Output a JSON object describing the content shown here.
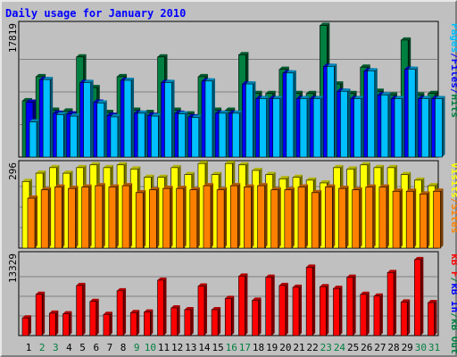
{
  "chart_data": {
    "type": "bar",
    "title": "Daily usage for January 2010",
    "categories": [
      "1",
      "2",
      "3",
      "4",
      "5",
      "6",
      "7",
      "8",
      "9",
      "10",
      "11",
      "12",
      "13",
      "14",
      "15",
      "16",
      "17",
      "18",
      "19",
      "20",
      "21",
      "22",
      "23",
      "24",
      "25",
      "26",
      "27",
      "28",
      "29",
      "30",
      "31"
    ],
    "weekend_days": [
      "2",
      "3",
      "9",
      "10",
      "16",
      "17",
      "23",
      "24",
      "30",
      "31"
    ],
    "panels": [
      {
        "id": "pages_files_hits",
        "max_label": "17819",
        "ylim": [
          0,
          17819
        ],
        "series": [
          {
            "name": "Hits",
            "color": "#008040",
            "values": [
              7700,
              11000,
              6400,
              6300,
              13700,
              9500,
              6100,
              11000,
              6400,
              6100,
              13700,
              6400,
              5900,
              11000,
              6400,
              6400,
              14000,
              8700,
              8700,
              12000,
              8700,
              8700,
              18000,
              10000,
              8700,
              12300,
              9000,
              8500,
              16000,
              8500,
              8700
            ]
          },
          {
            "name": "Files",
            "color": "#0000ff",
            "values": [
              7500,
              10600,
              6000,
              5900,
              10200,
              7500,
              5700,
              10500,
              6000,
              5700,
              10200,
              6000,
              5500,
              10400,
              6000,
              6000,
              10000,
              8000,
              8000,
              11500,
              8000,
              8000,
              12400,
              9000,
              8000,
              11800,
              8500,
              8000,
              12000,
              8000,
              8000
            ]
          },
          {
            "name": "Pages",
            "color": "#00c0ff",
            "values": [
              4800,
              10600,
              5800,
              5600,
              10200,
              7400,
              5500,
              10500,
              6000,
              5600,
              10200,
              5900,
              5400,
              10400,
              6000,
              6000,
              10000,
              8000,
              8000,
              11500,
              8000,
              8000,
              12400,
              9000,
              8000,
              11800,
              8500,
              8000,
              12000,
              8000,
              8000
            ]
          }
        ],
        "axis_label_parts": [
          {
            "text": "Pages",
            "color": "#00c0ff"
          },
          {
            "text": "/",
            "color": "#0000ff"
          },
          {
            "text": "Files",
            "color": "#0000ff"
          },
          {
            "text": "/",
            "color": "#0000ff"
          },
          {
            "text": "Hits",
            "color": "#008040"
          }
        ]
      },
      {
        "id": "visits_sites",
        "max_label": "296",
        "ylim": [
          0,
          296
        ],
        "series": [
          {
            "name": "Visits",
            "color": "#ffff00",
            "values": [
              240,
              270,
              290,
              270,
              290,
              300,
              290,
              300,
              285,
              255,
              255,
              290,
              265,
              305,
              265,
              305,
              300,
              280,
              265,
              250,
              255,
              245,
              235,
              290,
              285,
              300,
              290,
              290,
              265,
              245,
              225
            ]
          },
          {
            "name": "Sites",
            "color": "#ff8000",
            "values": [
              180,
              210,
              220,
              215,
              220,
              225,
              220,
              225,
              200,
              210,
              215,
              215,
              210,
              225,
              210,
              225,
              220,
              225,
              210,
              210,
              220,
              200,
              220,
              215,
              210,
              220,
              220,
              205,
              205,
              195,
              205
            ]
          }
        ],
        "axis_label_parts": [
          {
            "text": "Visits",
            "color": "#ffff00"
          },
          {
            "text": "/",
            "color": "#ff8000"
          },
          {
            "text": "Sites",
            "color": "#ff8000"
          }
        ]
      },
      {
        "id": "kb",
        "max_label": "13329",
        "ylim": [
          0,
          13329
        ],
        "series": [
          {
            "name": "kB F",
            "color": "#ff0000",
            "values": [
              3000,
              7000,
              3800,
              3700,
              8500,
              5800,
              3600,
              7600,
              3900,
              4000,
              9400,
              4700,
              4400,
              8400,
              4400,
              6300,
              10100,
              6000,
              9900,
              8500,
              8200,
              11600,
              8300,
              8000,
              9900,
              7000,
              6700,
              10700,
              5700,
              12900,
              5600
            ]
          }
        ],
        "axis_label_parts": [
          {
            "text": "kB F",
            "color": "#ff0000"
          },
          {
            "text": "/",
            "color": "#008040"
          },
          {
            "text": "kB In",
            "color": "#0000ff"
          },
          {
            "text": "/",
            "color": "#008040"
          },
          {
            "text": "kB Out",
            "color": "#008040"
          }
        ]
      }
    ]
  }
}
